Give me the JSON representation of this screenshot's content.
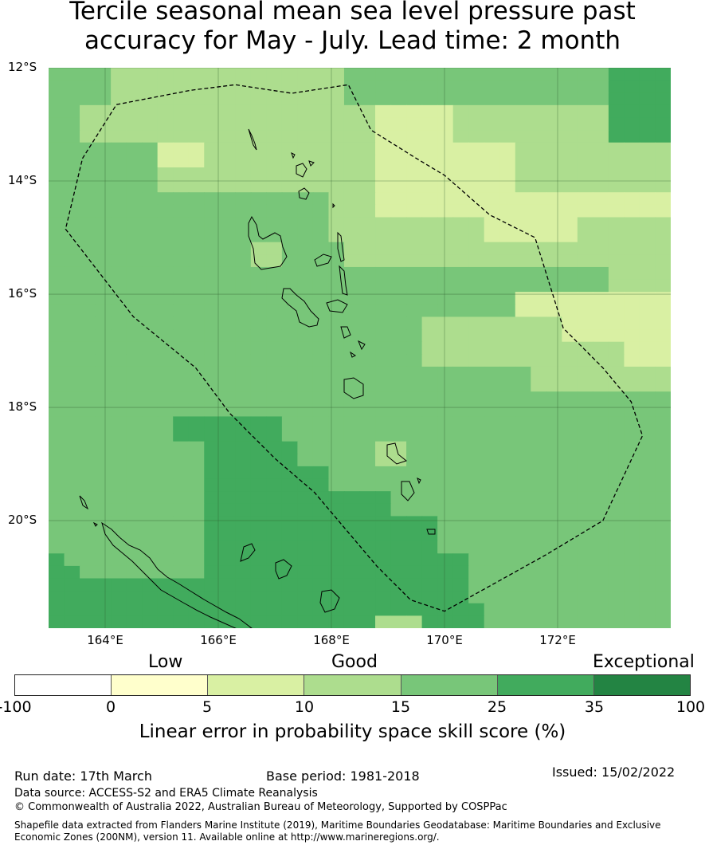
{
  "title_line1": "Tercile seasonal mean sea level pressure past",
  "title_line2": "accuracy for May - July. Lead time: 2 month",
  "map": {
    "lon_range": [
      163,
      174
    ],
    "lat_range": [
      -21.9,
      -12
    ],
    "lat_labels": [
      "12°S",
      "14°S",
      "16°S",
      "18°S",
      "20°S"
    ],
    "lon_labels": [
      "164°E",
      "166°E",
      "168°E",
      "170°E",
      "172°E"
    ],
    "grid_note": "Skill score category per grid cell (row 0 = northernmost)",
    "cell_rows": [
      "4444333333333333333444444444444444445555",
      "4444333333333333333444444444444444445555",
      "4444333333333333333444444444444444445555",
      "4433333333333333333332222233333333335555",
      "4433333333333333333332222233333333335555",
      "4433333333333333333332222233333333335555",
      "4444444222333333333332222222223333333333",
      "4444444222333333333332222222223333333333",
      "4444444333333333333332222222223333333333",
      "4444444333333333333332222222223333333333",
      "4444444444444444443332222222222222222222",
      "4444444444444444443332222222222222222222",
      "4444444444444444443333333333222222333333",
      "4444444444444444443333333333222222333333",
      "4444444444444334444333333333333333333333",
      "4444444444444334444333333333333333333333",
      "4444444444444444444444444444444444443333",
      "4444444444444444444444444444444444443333",
      "4444444444444444444444444444442222222222",
      "4444444444444444444444444444442222222222",
      "4444444444444444444444443333333332222222",
      "4444444444444444444444443333333332222222",
      "4444444444444444444444443333333333333222",
      "4444444444444444444444443333333333333222",
      "4444444444444444444444444444444333333333",
      "4444444444444444444444444444444333333333",
      "4444444444444444444444444444444444444444",
      "4444444444444444444444444444444444444444",
      "4444444455555554444444444444444444444444",
      "4444444455555554444444444444444444444444",
      "4444444444555555444443344444444444444444",
      "4444444444555555444443344444444444444444",
      "4444444444555555554444444444444444444444",
      "4444444444555555554444444444444444444444",
      "4444444444555555555555444444444444444444",
      "4444444444555555555555444444444444444444",
      "4444444444555555555555555444444444444444",
      "4444444444555555555555555444444444444444",
      "4444444444555555555555555444444444444444",
      "5444444444555555555555555554444444444444",
      "5544444444555555555555555554444444444444",
      "5555555555555555555555555554444444444444",
      "5555555555555555555555555554444444444444",
      "5555555555555555555555555555444444444444",
      "5555555555555555555553335555444444444444"
    ],
    "eez_boundary_lonlat": [
      [
        164.2,
        -12.65
      ],
      [
        165.5,
        -12.4
      ],
      [
        166.3,
        -12.3
      ],
      [
        167.3,
        -12.45
      ],
      [
        168.3,
        -12.3
      ],
      [
        168.7,
        -13.1
      ],
      [
        169.5,
        -13.6
      ],
      [
        170.0,
        -13.9
      ],
      [
        170.8,
        -14.6
      ],
      [
        171.6,
        -15.0
      ],
      [
        172.1,
        -16.6
      ],
      [
        172.8,
        -17.3
      ],
      [
        173.3,
        -17.9
      ],
      [
        173.5,
        -18.5
      ],
      [
        172.8,
        -20.0
      ],
      [
        171.8,
        -20.6
      ],
      [
        170.0,
        -21.6
      ],
      [
        169.4,
        -21.4
      ],
      [
        168.8,
        -20.8
      ],
      [
        167.7,
        -19.5
      ],
      [
        167.0,
        -18.9
      ],
      [
        166.2,
        -18.1
      ],
      [
        165.6,
        -17.3
      ],
      [
        164.5,
        -16.4
      ],
      [
        163.3,
        -14.85
      ],
      [
        163.6,
        -13.6
      ],
      [
        164.2,
        -12.65
      ]
    ]
  },
  "colorbar": {
    "category_labels": [
      "Low",
      "Good",
      "Exceptional"
    ],
    "colors": [
      "#ffffff",
      "#ffffcc",
      "#d9f0a3",
      "#addd8e",
      "#78c679",
      "#41ab5d",
      "#238443"
    ],
    "ticks": [
      "-100",
      "0",
      "5",
      "10",
      "15",
      "25",
      "35",
      "100"
    ],
    "label": "Linear error in probability space skill score (%)"
  },
  "footer": {
    "run_date": "Run date: 17th March",
    "base_period": "Base period: 1981-2018",
    "issued": "Issued: 15/02/2022",
    "data_source": "Data source: ACCESS-S2 and ERA5 Climate Reanalysis",
    "copyright": "© Commonwealth of Australia 2022, Australian Bureau of Meteorology, Supported by COSPPac",
    "shapefile_line1": "Shapefile data extracted from Flanders Marine Institute (2019), Maritime Boundaries Geodatabase: Maritime Boundaries and Exclusive",
    "shapefile_line2": "Economic Zones (200NM), version 11. Available online at http://www.marineregions.org/."
  }
}
